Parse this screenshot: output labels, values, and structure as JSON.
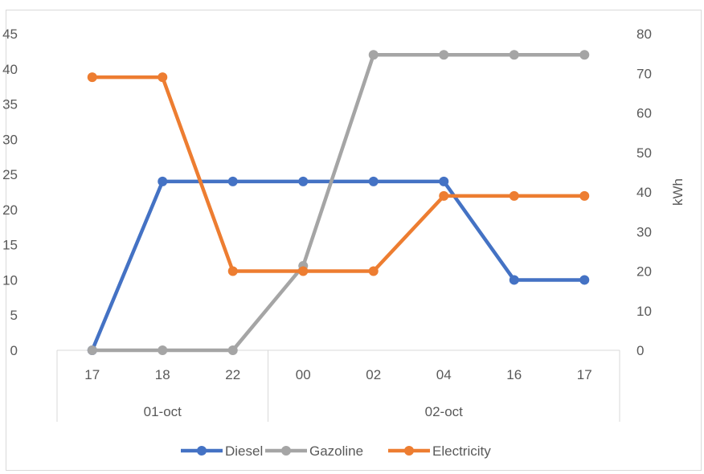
{
  "chart_data": {
    "type": "line",
    "title": "",
    "xlabel": "",
    "ylabel": "",
    "y2label": "kWh",
    "ylim": [
      0,
      45
    ],
    "y2lim": [
      0,
      80
    ],
    "yticks": [
      "0",
      "5",
      "10",
      "15",
      "20",
      "25",
      "30",
      "35",
      "40",
      "45"
    ],
    "y2ticks": [
      "0",
      "10",
      "20",
      "30",
      "40",
      "50",
      "60",
      "70",
      "80"
    ],
    "categories": [
      "17",
      "18",
      "22",
      "00",
      "02",
      "04",
      "16",
      "17"
    ],
    "groups": [
      {
        "label": "01-oct",
        "start": 0,
        "end": 2
      },
      {
        "label": "02-oct",
        "start": 3,
        "end": 7
      }
    ],
    "grid": false,
    "legend": "bottom",
    "series": [
      {
        "name": "Diesel",
        "axis": "left",
        "color": "#4472C4",
        "values": [
          0,
          24,
          24,
          24,
          24,
          24,
          10,
          10
        ]
      },
      {
        "name": "Gazoline",
        "axis": "left",
        "color": "#A5A5A5",
        "values": [
          0,
          0,
          0,
          12,
          42,
          42,
          42,
          42
        ]
      },
      {
        "name": "Electricity",
        "axis": "right",
        "color": "#ED7D31",
        "values": [
          69,
          69,
          20,
          20,
          20,
          39,
          39,
          39
        ]
      }
    ]
  }
}
